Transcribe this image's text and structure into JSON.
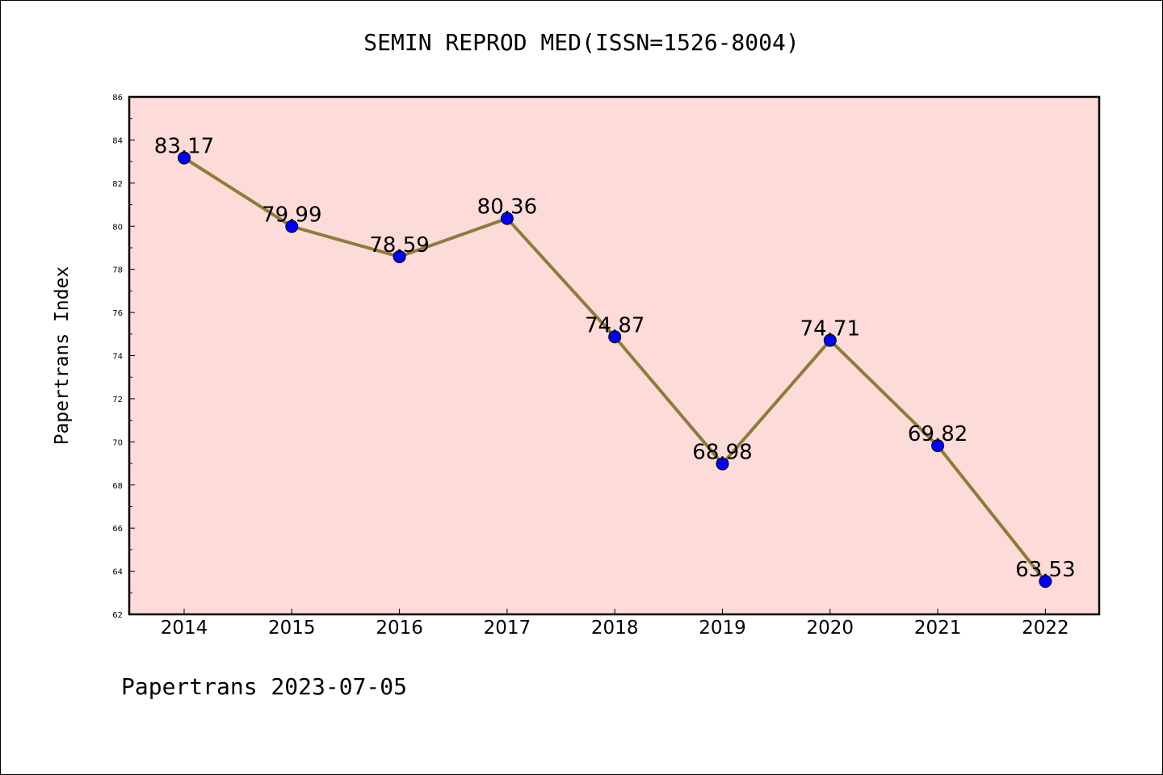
{
  "title": "SEMIN REPROD MED(ISSN=1526-8004)",
  "footer": "Papertrans 2023-07-05",
  "colors": {
    "plot_background": "#fddbd9",
    "line": "#8b7d3a",
    "marker": "#0000ff"
  },
  "chart_data": {
    "type": "line",
    "title": "SEMIN REPROD MED(ISSN=1526-8004)",
    "xlabel": "",
    "ylabel": "Papertrans Index",
    "categories": [
      "2014",
      "2015",
      "2016",
      "2017",
      "2018",
      "2019",
      "2020",
      "2021",
      "2022"
    ],
    "series": [
      {
        "values": [
          83.17,
          79.99,
          78.59,
          80.36,
          74.87,
          68.98,
          74.71,
          69.82,
          63.53
        ],
        "labels": [
          "83.17",
          "79.99",
          "78.59",
          "80.36",
          "74.87",
          "68.98",
          "74.71",
          "69.82",
          "63.53"
        ]
      }
    ],
    "ylim": [
      62,
      86
    ],
    "yticks": [
      62,
      64,
      66,
      68,
      70,
      72,
      74,
      76,
      78,
      80,
      82,
      84,
      86
    ],
    "grid": false,
    "legend": "none"
  }
}
